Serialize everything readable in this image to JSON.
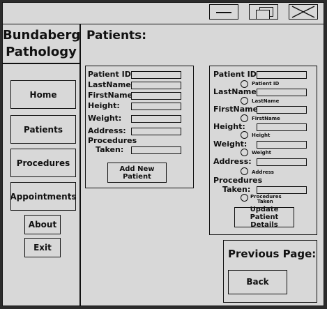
{
  "sidebar": {
    "brand_line1": "Bundaberg",
    "brand_line2": "Pathology",
    "nav": [
      "Home",
      "Patients",
      "Procedures",
      "Appointments"
    ],
    "about": "About",
    "exit": "Exit"
  },
  "page_title": "Patients:",
  "add_form": {
    "labels": [
      "Patient ID:",
      "LastName:",
      "FirstName:",
      "Height:",
      "Weight:",
      "Address:",
      "Procedures",
      "Taken:"
    ],
    "button": "Add New Patient"
  },
  "update_form": {
    "labels": [
      "Patient ID:",
      "LastName:",
      "FirstName:",
      "Height:",
      "Weight:",
      "Address:",
      "Procedures",
      "Taken:"
    ],
    "radio_labels": [
      "Patient ID",
      "LastName",
      "FirstName",
      "Height",
      "Weight",
      "Address",
      "Procedures",
      "Taken"
    ],
    "button_line1": "Update Patient",
    "button_line2": "Details"
  },
  "previous": {
    "title": "Previous Page:",
    "button": "Back"
  }
}
